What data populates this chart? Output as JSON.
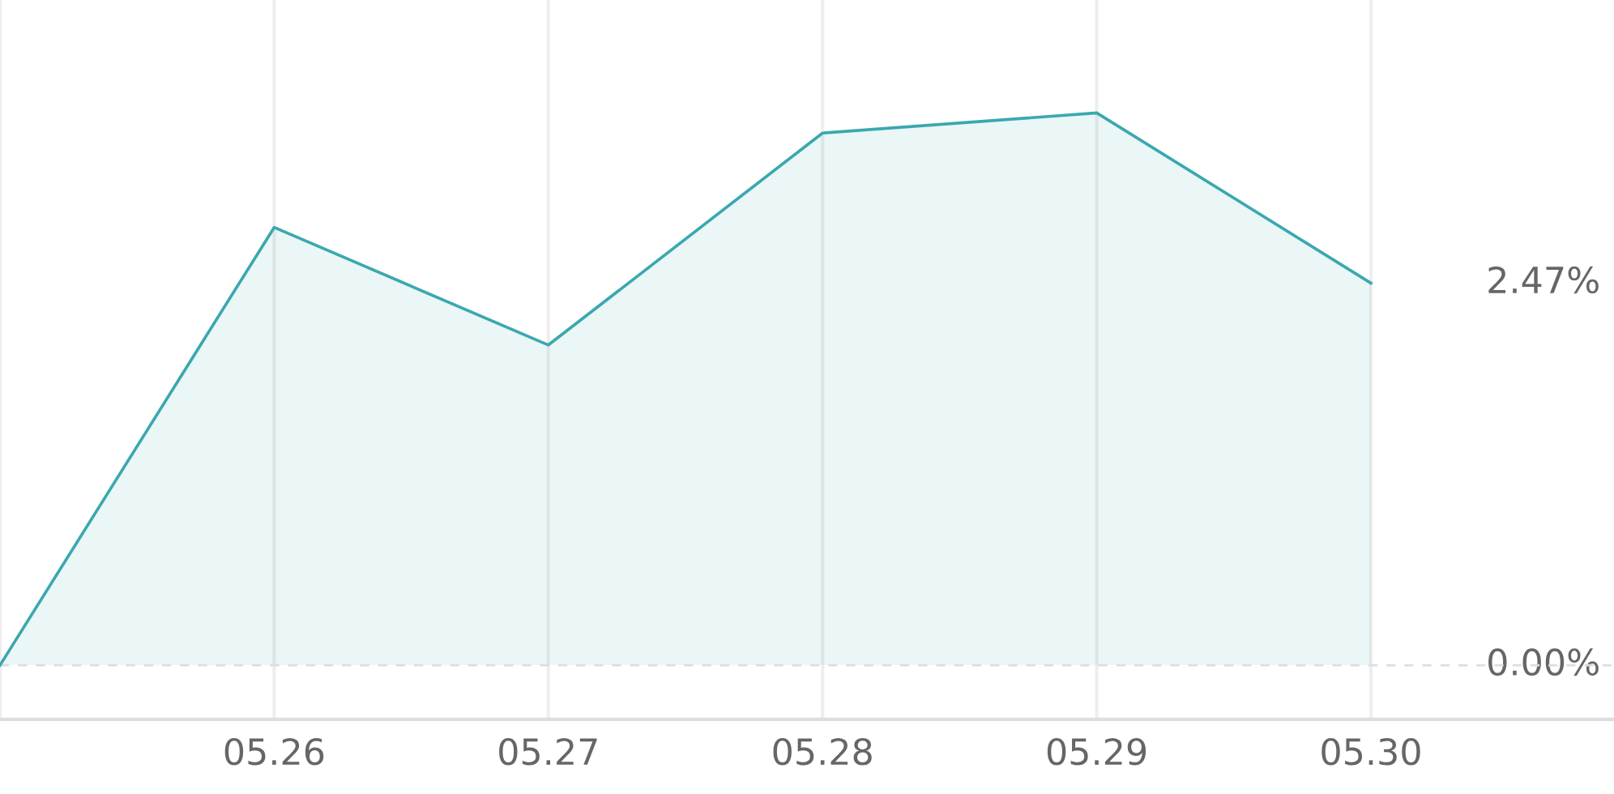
{
  "chart_data": {
    "type": "area",
    "categories": [
      null,
      "05.26",
      "05.27",
      "05.28",
      "05.29",
      "05.30"
    ],
    "values": [
      0,
      2.83,
      2.07,
      3.44,
      3.57,
      2.47
    ],
    "color": "#3aa8b0",
    "ylim": [
      -0.35,
      4.3
    ],
    "yticks": [
      {
        "value": 0,
        "label": "0.00%"
      },
      {
        "value": 2.47,
        "label": "2.47%"
      }
    ],
    "grid": "x",
    "ref_lines": [
      {
        "axis": "y",
        "value": 0,
        "color": "#dddddd",
        "line_style": "dashed"
      }
    ]
  }
}
